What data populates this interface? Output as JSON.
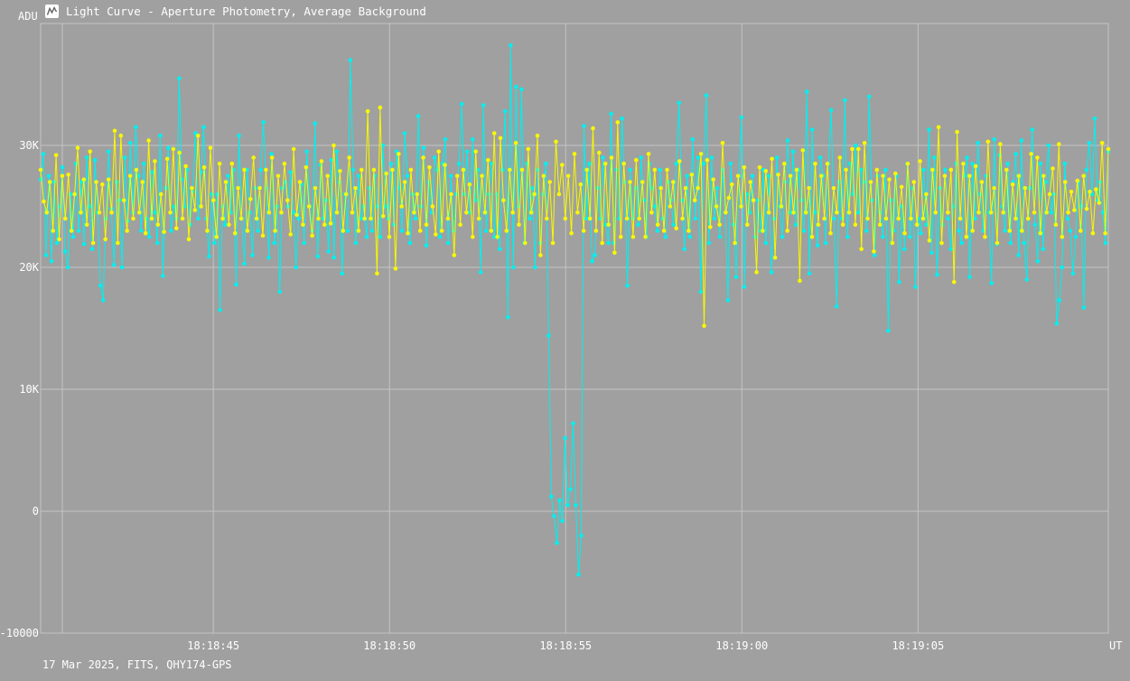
{
  "window": {
    "title": "Light Curve - Aperture Photometry, Average Background",
    "icon": "light-curve-app-icon"
  },
  "footer": {
    "text": "17 Mar 2025, FITS, QHY174-GPS"
  },
  "colors": {
    "background": "#a0a0a0",
    "grid": "#c4c4c4",
    "text": "#ffffff",
    "series_target": "#00f0f0",
    "series_comparison": "#f8f800"
  },
  "chart_data": {
    "type": "line",
    "title": "",
    "xlabel": "UT",
    "ylabel": "ADU",
    "ylim": [
      -10000,
      40000
    ],
    "yticks": [
      {
        "value": -10000,
        "label": "-10000"
      },
      {
        "value": 0,
        "label": "0"
      },
      {
        "value": 10000,
        "label": "10K"
      },
      {
        "value": 20000,
        "label": "20K"
      },
      {
        "value": 30000,
        "label": "30K"
      }
    ],
    "xlim": [
      "18:18:40.1",
      "18:19:10.4"
    ],
    "xticks": [
      "18:18:45",
      "18:18:50",
      "18:18:55",
      "18:19:00",
      "18:19:05"
    ],
    "grid": true,
    "markers": true,
    "legend": "none",
    "series": [
      {
        "color": "#00f0f0",
        "t_start": "18:18:40.1",
        "t_end": "18:19:10.4",
        "values": [
          27200,
          29300,
          21000,
          27500,
          20500,
          27000,
          22000,
          25000,
          28200,
          21300,
          20000,
          26000,
          22500,
          28500,
          23000,
          27000,
          21900,
          29000,
          25000,
          21500,
          28800,
          24500,
          18500,
          17300,
          24000,
          29500,
          24800,
          20200,
          27000,
          25500,
          20000,
          29000,
          23800,
          30200,
          24500,
          31500,
          27500,
          23000,
          28500,
          24000,
          22500,
          27800,
          24500,
          22000,
          30800,
          19300,
          26500,
          29800,
          23000,
          25000,
          24000,
          35500,
          27200,
          25000,
          28000,
          23500,
          26200,
          31000,
          24000,
          27800,
          31500,
          24000,
          20900,
          26000,
          22000,
          26000,
          16500,
          25000,
          23500,
          27500,
          24500,
          28000,
          18600,
          30800,
          24000,
          20300,
          28000,
          24500,
          21000,
          26500,
          23000,
          28000,
          31900,
          26500,
          20800,
          29300,
          22000,
          25000,
          18000,
          26500,
          27000,
          25000,
          27800,
          24500,
          20000,
          24000,
          26800,
          22000,
          29500,
          25000,
          23000,
          31800,
          20900,
          28400,
          24000,
          25500,
          21300,
          28800,
          20800,
          29500,
          27000,
          19500,
          26000,
          23000,
          37000,
          28000,
          22000,
          27500,
          24000,
          25000,
          22500,
          26500,
          23000,
          27500,
          25000,
          22500,
          30000,
          25000,
          24000,
          28500,
          23500,
          29500,
          26500,
          23000,
          31000,
          27500,
          22000,
          26000,
          24000,
          32400,
          25000,
          29800,
          21800,
          27000,
          24500,
          29000,
          28000,
          22500,
          28500,
          30500,
          22000,
          27500,
          23000,
          26000,
          28500,
          33400,
          26000,
          29500,
          24500,
          30500,
          25500,
          28000,
          19600,
          33300,
          23000,
          26000,
          28500,
          22500,
          26000,
          21500,
          28000,
          32800,
          15900,
          38200,
          20000,
          34800,
          25000,
          34600,
          22000,
          28500,
          24000,
          26500,
          20000,
          28000,
          22000,
          26000,
          28500,
          14400,
          1200,
          -400,
          -2600,
          900,
          -800,
          6000,
          500,
          1800,
          7200,
          500,
          -5200,
          -2000,
          31600,
          24000,
          28500,
          20500,
          21000,
          26500,
          24000,
          29000,
          23500,
          22000,
          32600,
          22000,
          28000,
          24000,
          32200,
          27000,
          18500,
          28000,
          24000,
          26500,
          23500,
          29000,
          25500,
          22500,
          28500,
          26500,
          25000,
          23000,
          28000,
          24000,
          22500,
          27000,
          25500,
          23500,
          28500,
          33500,
          25500,
          21500,
          27500,
          22500,
          30500,
          24000,
          29000,
          18000,
          28500,
          34100,
          22000,
          29000,
          24000,
          26500,
          22500,
          28000,
          24500,
          17300,
          28500,
          23500,
          19200,
          27500,
          32300,
          18400,
          26000,
          24500,
          27500,
          22500,
          25500,
          23000,
          28000,
          22000,
          27500,
          19600,
          24000,
          29000,
          25000,
          22500,
          27000,
          30400,
          24500,
          29500,
          23500,
          28000,
          25500,
          23000,
          34400,
          19500,
          31300,
          24500,
          21800,
          29000,
          27500,
          22000,
          28500,
          32900,
          24000,
          16800,
          27000,
          24000,
          33700,
          22500,
          28500,
          26000,
          30000,
          24500,
          28000,
          27000,
          23000,
          34000,
          25500,
          21000,
          27500,
          24500,
          22500,
          28000,
          14800,
          25500,
          23000,
          27500,
          18800,
          25000,
          21500,
          28500,
          22500,
          26500,
          18400,
          24000,
          22800,
          28000,
          23500,
          31300,
          21200,
          29000,
          19400,
          26500,
          23500,
          28000,
          24000,
          21500,
          25000,
          28500,
          23000,
          22000,
          27500,
          29000,
          19200,
          28500,
          24000,
          30200,
          26000,
          23000,
          27500,
          24500,
          18700,
          30500,
          21900,
          29200,
          25000,
          23000,
          28500,
          22000,
          27000,
          29300,
          21000,
          30400,
          22000,
          19000,
          26500,
          31300,
          23500,
          20500,
          28500,
          21500,
          27000,
          30000,
          24500,
          26000,
          15400,
          17300,
          20000,
          28500,
          24000,
          23000,
          19500,
          22500,
          27000,
          25000,
          16700,
          28000,
          30200,
          26000,
          32200,
          25500,
          27000,
          24500,
          22000,
          29500
        ]
      },
      {
        "color": "#f8f800",
        "t_start": "18:18:40.1",
        "t_end": "18:19:10.4",
        "values": [
          28000,
          25400,
          24500,
          27000,
          23000,
          29200,
          22300,
          27500,
          24000,
          27600,
          23000,
          26000,
          29800,
          24500,
          27200,
          23500,
          29500,
          22000,
          27000,
          24500,
          26800,
          22300,
          27200,
          24500,
          31200,
          22000,
          30800,
          25500,
          23000,
          27500,
          24000,
          28000,
          24500,
          27000,
          22800,
          30400,
          24000,
          28700,
          23500,
          26000,
          22900,
          28900,
          24500,
          29700,
          23200,
          29400,
          24000,
          28300,
          22300,
          26500,
          24700,
          30800,
          25000,
          28200,
          23000,
          29800,
          25500,
          22500,
          28500,
          24000,
          27000,
          23500,
          28500,
          22800,
          26500,
          24000,
          28000,
          23000,
          25600,
          29000,
          24000,
          26500,
          22600,
          28000,
          24500,
          29000,
          23000,
          27500,
          24500,
          28500,
          25500,
          22700,
          29700,
          24300,
          27000,
          23500,
          28200,
          25000,
          22600,
          26500,
          24000,
          28700,
          23500,
          27500,
          23600,
          30000,
          24500,
          27900,
          23000,
          26000,
          29000,
          24500,
          26500,
          23000,
          28000,
          24000,
          32800,
          24000,
          28000,
          19500,
          33100,
          24200,
          27700,
          22500,
          28000,
          19900,
          29300,
          25000,
          27000,
          22800,
          28000,
          24500,
          26000,
          23000,
          29000,
          23500,
          28200,
          25000,
          22700,
          29500,
          23000,
          28400,
          24000,
          26000,
          21000,
          27500,
          23500,
          28000,
          24500,
          26800,
          22500,
          29500,
          24000,
          27500,
          24500,
          28800,
          23000,
          31000,
          22500,
          30600,
          25500,
          23000,
          28000,
          24500,
          30200,
          23500,
          28000,
          22000,
          29700,
          24500,
          26000,
          30800,
          21000,
          27500,
          24000,
          27000,
          22000,
          30300,
          26000,
          28400,
          24000,
          27500,
          22800,
          29300,
          24500,
          26800,
          23000,
          28000,
          24000,
          31400,
          23000,
          29400,
          22000,
          28500,
          23500,
          29000,
          21200,
          31900,
          22500,
          28500,
          24000,
          27000,
          22500,
          28800,
          24000,
          27000,
          22500,
          29300,
          24500,
          28000,
          23500,
          26500,
          23000,
          28000,
          25000,
          27000,
          23200,
          28700,
          24000,
          26500,
          23000,
          27600,
          25500,
          26500,
          29300,
          15200,
          28800,
          23300,
          27200,
          25000,
          23500,
          30200,
          24500,
          25700,
          26800,
          22000,
          27500,
          25000,
          28200,
          23500,
          27000,
          25500,
          19600,
          28200,
          23000,
          27900,
          24500,
          28900,
          20800,
          27600,
          25000,
          28500,
          23000,
          27500,
          24500,
          28000,
          18900,
          29600,
          24500,
          26500,
          22500,
          28500,
          23500,
          27500,
          24000,
          28500,
          22800,
          26500,
          24500,
          29000,
          23500,
          28000,
          24500,
          29700,
          23500,
          29700,
          21500,
          30200,
          24000,
          27000,
          21300,
          28000,
          23500,
          27500,
          24000,
          27200,
          22000,
          27700,
          24000,
          26600,
          22800,
          28500,
          24000,
          27000,
          23500,
          28700,
          24000,
          26000,
          22200,
          28000,
          24500,
          31500,
          22000,
          27500,
          24500,
          28000,
          18800,
          31100,
          24000,
          28500,
          22500,
          27500,
          23000,
          28300,
          24500,
          27000,
          22500,
          30300,
          24500,
          26500,
          22000,
          30100,
          24500,
          28000,
          23000,
          26800,
          24000,
          27500,
          23000,
          26500,
          24000,
          29300,
          24500,
          29000,
          22800,
          27500,
          24500,
          26000,
          28100,
          23500,
          30100,
          22500,
          27000,
          24500,
          26200,
          24700,
          27100,
          23000,
          27500,
          24800,
          26200,
          22800,
          26400,
          25300,
          30200,
          22800,
          29700
        ]
      }
    ]
  }
}
